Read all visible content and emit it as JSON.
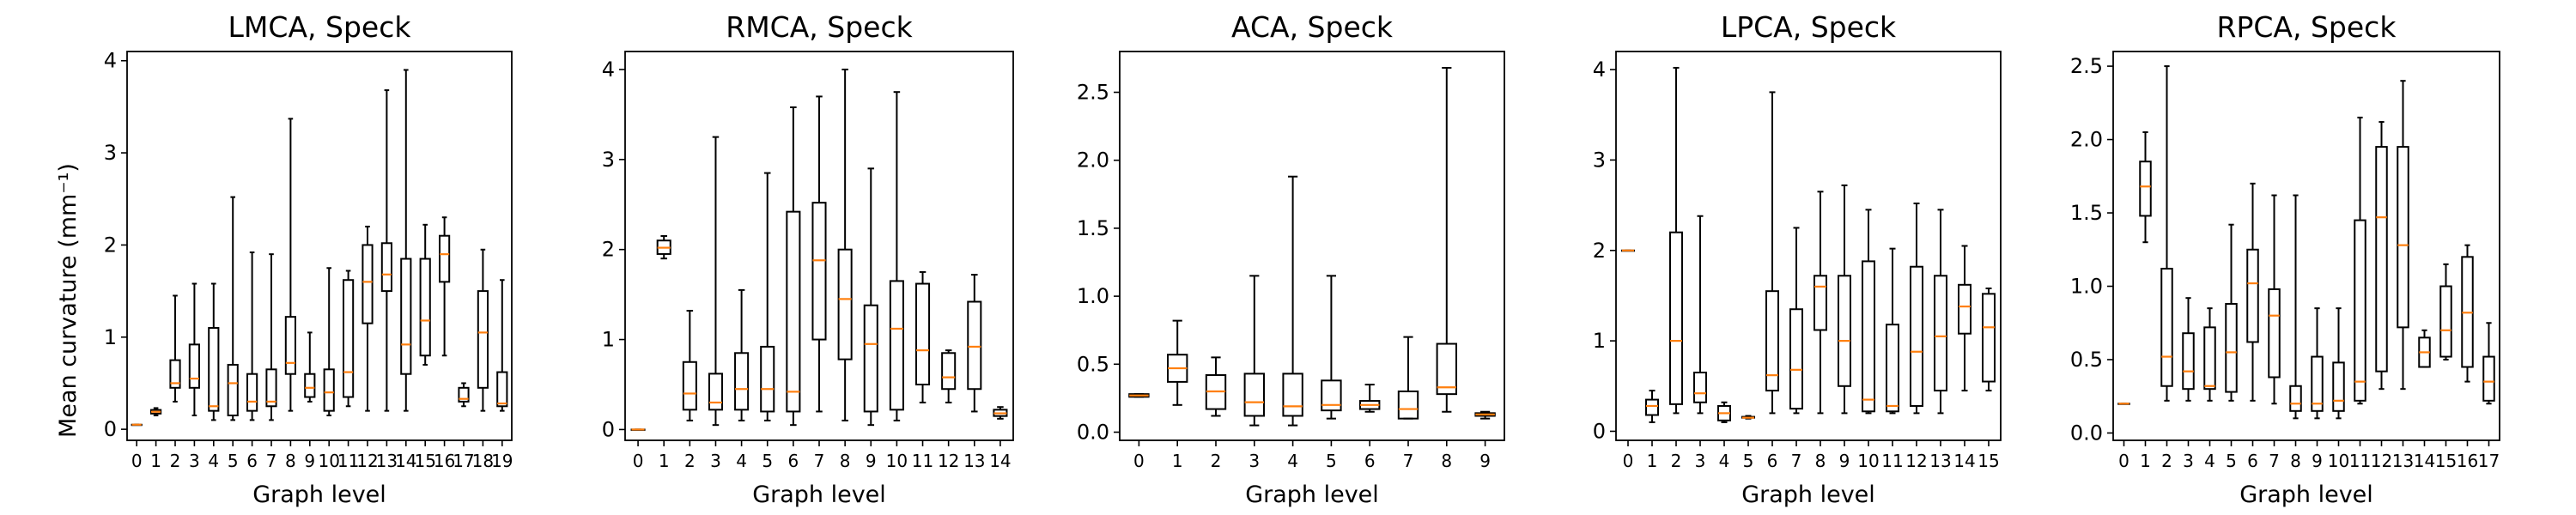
{
  "ylabel": "Mean curvature (mm⁻¹)",
  "chart_data": [
    {
      "type": "box",
      "title": "LMCA, Speck",
      "xlabel": "Graph level",
      "ylabel": "Mean curvature (mm⁻¹)",
      "ylim": [
        -0.12,
        4.1
      ],
      "yticks": [
        0,
        1,
        2,
        3,
        4
      ],
      "categories": [
        "0",
        "1",
        "2",
        "3",
        "4",
        "5",
        "6",
        "7",
        "8",
        "9",
        "10",
        "11",
        "12",
        "13",
        "14",
        "15",
        "16",
        "17",
        "18",
        "19"
      ],
      "boxes": [
        {
          "whislo": 0.05,
          "q1": 0.05,
          "med": 0.05,
          "q3": 0.05,
          "whishi": 0.05
        },
        {
          "whislo": 0.15,
          "q1": 0.17,
          "med": 0.19,
          "q3": 0.21,
          "whishi": 0.23
        },
        {
          "whislo": 0.3,
          "q1": 0.45,
          "med": 0.5,
          "q3": 0.75,
          "whishi": 1.45
        },
        {
          "whislo": 0.15,
          "q1": 0.45,
          "med": 0.55,
          "q3": 0.92,
          "whishi": 1.58
        },
        {
          "whislo": 0.1,
          "q1": 0.2,
          "med": 0.25,
          "q3": 1.1,
          "whishi": 1.58
        },
        {
          "whislo": 0.1,
          "q1": 0.15,
          "med": 0.5,
          "q3": 0.7,
          "whishi": 2.52
        },
        {
          "whislo": 0.1,
          "q1": 0.2,
          "med": 0.3,
          "q3": 0.6,
          "whishi": 1.92
        },
        {
          "whislo": 0.1,
          "q1": 0.25,
          "med": 0.3,
          "q3": 0.65,
          "whishi": 1.9
        },
        {
          "whislo": 0.2,
          "q1": 0.6,
          "med": 0.72,
          "q3": 1.22,
          "whishi": 3.37
        },
        {
          "whislo": 0.3,
          "q1": 0.35,
          "med": 0.45,
          "q3": 0.6,
          "whishi": 1.05
        },
        {
          "whislo": 0.15,
          "q1": 0.2,
          "med": 0.4,
          "q3": 0.65,
          "whishi": 1.75
        },
        {
          "whislo": 0.25,
          "q1": 0.35,
          "med": 0.62,
          "q3": 1.62,
          "whishi": 1.72
        },
        {
          "whislo": 0.2,
          "q1": 1.15,
          "med": 1.6,
          "q3": 2.0,
          "whishi": 2.2
        },
        {
          "whislo": 0.2,
          "q1": 1.5,
          "med": 1.68,
          "q3": 2.02,
          "whishi": 3.68
        },
        {
          "whislo": 0.2,
          "q1": 0.6,
          "med": 0.92,
          "q3": 1.85,
          "whishi": 3.9
        },
        {
          "whislo": 0.7,
          "q1": 0.8,
          "med": 1.18,
          "q3": 1.85,
          "whishi": 2.22
        },
        {
          "whislo": 0.8,
          "q1": 1.6,
          "med": 1.9,
          "q3": 2.1,
          "whishi": 2.3
        },
        {
          "whislo": 0.25,
          "q1": 0.3,
          "med": 0.33,
          "q3": 0.45,
          "whishi": 0.5
        },
        {
          "whislo": 0.2,
          "q1": 0.45,
          "med": 1.05,
          "q3": 1.5,
          "whishi": 1.95
        },
        {
          "whislo": 0.2,
          "q1": 0.25,
          "med": 0.28,
          "q3": 0.62,
          "whishi": 1.62
        }
      ]
    },
    {
      "type": "box",
      "title": "RMCA, Speck",
      "xlabel": "Graph level",
      "ylim": [
        -0.12,
        4.2
      ],
      "yticks": [
        0,
        1,
        2,
        3,
        4
      ],
      "categories": [
        "0",
        "1",
        "2",
        "3",
        "4",
        "5",
        "6",
        "7",
        "8",
        "9",
        "10",
        "11",
        "12",
        "13",
        "14"
      ],
      "boxes": [
        {
          "whislo": 0.0,
          "q1": 0.0,
          "med": 0.0,
          "q3": 0.0,
          "whishi": 0.0
        },
        {
          "whislo": 1.9,
          "q1": 1.95,
          "med": 2.02,
          "q3": 2.1,
          "whishi": 2.15
        },
        {
          "whislo": 0.1,
          "q1": 0.22,
          "med": 0.4,
          "q3": 0.75,
          "whishi": 1.32
        },
        {
          "whislo": 0.05,
          "q1": 0.22,
          "med": 0.3,
          "q3": 0.62,
          "whishi": 3.25
        },
        {
          "whislo": 0.1,
          "q1": 0.22,
          "med": 0.45,
          "q3": 0.85,
          "whishi": 1.55
        },
        {
          "whislo": 0.1,
          "q1": 0.2,
          "med": 0.45,
          "q3": 0.92,
          "whishi": 2.85
        },
        {
          "whislo": 0.05,
          "q1": 0.2,
          "med": 0.42,
          "q3": 2.42,
          "whishi": 3.58
        },
        {
          "whislo": 0.2,
          "q1": 1.0,
          "med": 1.88,
          "q3": 2.52,
          "whishi": 3.7
        },
        {
          "whislo": 0.1,
          "q1": 0.78,
          "med": 1.45,
          "q3": 2.0,
          "whishi": 4.0
        },
        {
          "whislo": 0.05,
          "q1": 0.2,
          "med": 0.95,
          "q3": 1.38,
          "whishi": 2.9
        },
        {
          "whislo": 0.1,
          "q1": 0.22,
          "med": 1.12,
          "q3": 1.65,
          "whishi": 3.75
        },
        {
          "whislo": 0.3,
          "q1": 0.5,
          "med": 0.88,
          "q3": 1.62,
          "whishi": 1.75
        },
        {
          "whislo": 0.3,
          "q1": 0.45,
          "med": 0.58,
          "q3": 0.85,
          "whishi": 0.88
        },
        {
          "whislo": 0.2,
          "q1": 0.45,
          "med": 0.92,
          "q3": 1.42,
          "whishi": 1.72
        },
        {
          "whislo": 0.12,
          "q1": 0.15,
          "med": 0.18,
          "q3": 0.22,
          "whishi": 0.25
        }
      ]
    },
    {
      "type": "box",
      "title": "ACA, Speck",
      "xlabel": "Graph level",
      "ylim": [
        -0.06,
        2.8
      ],
      "yticks": [
        0.0,
        0.5,
        1.0,
        1.5,
        2.0,
        2.5
      ],
      "categories": [
        "0",
        "1",
        "2",
        "3",
        "4",
        "5",
        "6",
        "7",
        "8",
        "9"
      ],
      "boxes": [
        {
          "whislo": 0.26,
          "q1": 0.26,
          "med": 0.27,
          "q3": 0.28,
          "whishi": 0.28
        },
        {
          "whislo": 0.2,
          "q1": 0.37,
          "med": 0.47,
          "q3": 0.57,
          "whishi": 0.82
        },
        {
          "whislo": 0.12,
          "q1": 0.17,
          "med": 0.3,
          "q3": 0.42,
          "whishi": 0.55
        },
        {
          "whislo": 0.05,
          "q1": 0.12,
          "med": 0.22,
          "q3": 0.43,
          "whishi": 1.15
        },
        {
          "whislo": 0.05,
          "q1": 0.12,
          "med": 0.19,
          "q3": 0.43,
          "whishi": 1.88
        },
        {
          "whislo": 0.1,
          "q1": 0.16,
          "med": 0.2,
          "q3": 0.38,
          "whishi": 1.15
        },
        {
          "whislo": 0.15,
          "q1": 0.17,
          "med": 0.2,
          "q3": 0.23,
          "whishi": 0.35
        },
        {
          "whislo": 0.1,
          "q1": 0.1,
          "med": 0.17,
          "q3": 0.3,
          "whishi": 0.7
        },
        {
          "whislo": 0.15,
          "q1": 0.28,
          "med": 0.33,
          "q3": 0.65,
          "whishi": 2.68
        },
        {
          "whislo": 0.1,
          "q1": 0.12,
          "med": 0.13,
          "q3": 0.14,
          "whishi": 0.15
        }
      ]
    },
    {
      "type": "box",
      "title": "LPCA, Speck",
      "xlabel": "Graph level",
      "ylim": [
        -0.1,
        4.2
      ],
      "yticks": [
        0,
        1,
        2,
        3,
        4
      ],
      "categories": [
        "0",
        "1",
        "2",
        "3",
        "4",
        "5",
        "6",
        "7",
        "8",
        "9",
        "10",
        "11",
        "12",
        "13",
        "14",
        "15"
      ],
      "boxes": [
        {
          "whislo": 2.0,
          "q1": 2.0,
          "med": 2.0,
          "q3": 2.0,
          "whishi": 2.0
        },
        {
          "whislo": 0.1,
          "q1": 0.18,
          "med": 0.28,
          "q3": 0.35,
          "whishi": 0.45
        },
        {
          "whislo": 0.2,
          "q1": 0.3,
          "med": 1.0,
          "q3": 2.2,
          "whishi": 4.02
        },
        {
          "whislo": 0.2,
          "q1": 0.32,
          "med": 0.42,
          "q3": 0.65,
          "whishi": 2.38
        },
        {
          "whislo": 0.1,
          "q1": 0.12,
          "med": 0.2,
          "q3": 0.28,
          "whishi": 0.32
        },
        {
          "whislo": 0.14,
          "q1": 0.15,
          "med": 0.15,
          "q3": 0.16,
          "whishi": 0.17
        },
        {
          "whislo": 0.2,
          "q1": 0.45,
          "med": 0.62,
          "q3": 1.55,
          "whishi": 3.75
        },
        {
          "whislo": 0.2,
          "q1": 0.25,
          "med": 0.68,
          "q3": 1.35,
          "whishi": 2.25
        },
        {
          "whislo": 0.2,
          "q1": 1.12,
          "med": 1.6,
          "q3": 1.72,
          "whishi": 2.65
        },
        {
          "whislo": 0.2,
          "q1": 0.5,
          "med": 1.0,
          "q3": 1.72,
          "whishi": 2.72
        },
        {
          "whislo": 0.2,
          "q1": 0.22,
          "med": 0.35,
          "q3": 1.88,
          "whishi": 2.45
        },
        {
          "whislo": 0.2,
          "q1": 0.22,
          "med": 0.28,
          "q3": 1.18,
          "whishi": 2.02
        },
        {
          "whislo": 0.2,
          "q1": 0.28,
          "med": 0.88,
          "q3": 1.82,
          "whishi": 2.52
        },
        {
          "whislo": 0.2,
          "q1": 0.45,
          "med": 1.05,
          "q3": 1.72,
          "whishi": 2.45
        },
        {
          "whislo": 0.45,
          "q1": 1.08,
          "med": 1.38,
          "q3": 1.62,
          "whishi": 2.05
        },
        {
          "whislo": 0.45,
          "q1": 0.55,
          "med": 1.15,
          "q3": 1.52,
          "whishi": 1.58
        }
      ]
    },
    {
      "type": "box",
      "title": "RPCA, Speck",
      "xlabel": "Graph level",
      "ylim": [
        -0.05,
        2.6
      ],
      "yticks": [
        0.0,
        0.5,
        1.0,
        1.5,
        2.0,
        2.5
      ],
      "categories": [
        "0",
        "1",
        "2",
        "3",
        "4",
        "5",
        "6",
        "7",
        "8",
        "9",
        "10",
        "11",
        "12",
        "13",
        "14",
        "15",
        "16",
        "17"
      ],
      "boxes": [
        {
          "whislo": 0.2,
          "q1": 0.2,
          "med": 0.2,
          "q3": 0.2,
          "whishi": 0.2
        },
        {
          "whislo": 1.3,
          "q1": 1.48,
          "med": 1.68,
          "q3": 1.85,
          "whishi": 2.05
        },
        {
          "whislo": 0.22,
          "q1": 0.32,
          "med": 0.52,
          "q3": 1.12,
          "whishi": 2.5
        },
        {
          "whislo": 0.22,
          "q1": 0.3,
          "med": 0.42,
          "q3": 0.68,
          "whishi": 0.92
        },
        {
          "whislo": 0.22,
          "q1": 0.3,
          "med": 0.32,
          "q3": 0.72,
          "whishi": 0.85
        },
        {
          "whislo": 0.22,
          "q1": 0.28,
          "med": 0.55,
          "q3": 0.88,
          "whishi": 1.42
        },
        {
          "whislo": 0.22,
          "q1": 0.62,
          "med": 1.02,
          "q3": 1.25,
          "whishi": 1.7
        },
        {
          "whislo": 0.2,
          "q1": 0.38,
          "med": 0.8,
          "q3": 0.98,
          "whishi": 1.62
        },
        {
          "whislo": 0.1,
          "q1": 0.15,
          "med": 0.2,
          "q3": 0.32,
          "whishi": 1.62
        },
        {
          "whislo": 0.1,
          "q1": 0.15,
          "med": 0.2,
          "q3": 0.52,
          "whishi": 0.85
        },
        {
          "whislo": 0.1,
          "q1": 0.15,
          "med": 0.22,
          "q3": 0.48,
          "whishi": 0.85
        },
        {
          "whislo": 0.2,
          "q1": 0.22,
          "med": 0.35,
          "q3": 1.45,
          "whishi": 2.15
        },
        {
          "whislo": 0.3,
          "q1": 0.42,
          "med": 1.47,
          "q3": 1.95,
          "whishi": 2.12
        },
        {
          "whislo": 0.3,
          "q1": 0.72,
          "med": 1.28,
          "q3": 1.95,
          "whishi": 2.4
        },
        {
          "whislo": 0.45,
          "q1": 0.45,
          "med": 0.55,
          "q3": 0.65,
          "whishi": 0.7
        },
        {
          "whislo": 0.5,
          "q1": 0.52,
          "med": 0.7,
          "q3": 1.0,
          "whishi": 1.15
        },
        {
          "whislo": 0.35,
          "q1": 0.45,
          "med": 0.82,
          "q3": 1.2,
          "whishi": 1.28
        },
        {
          "whislo": 0.2,
          "q1": 0.22,
          "med": 0.35,
          "q3": 0.52,
          "whishi": 0.75
        }
      ]
    }
  ],
  "colors": {
    "box": "#000000",
    "median": "#ff7f0e",
    "background": "#ffffff"
  }
}
